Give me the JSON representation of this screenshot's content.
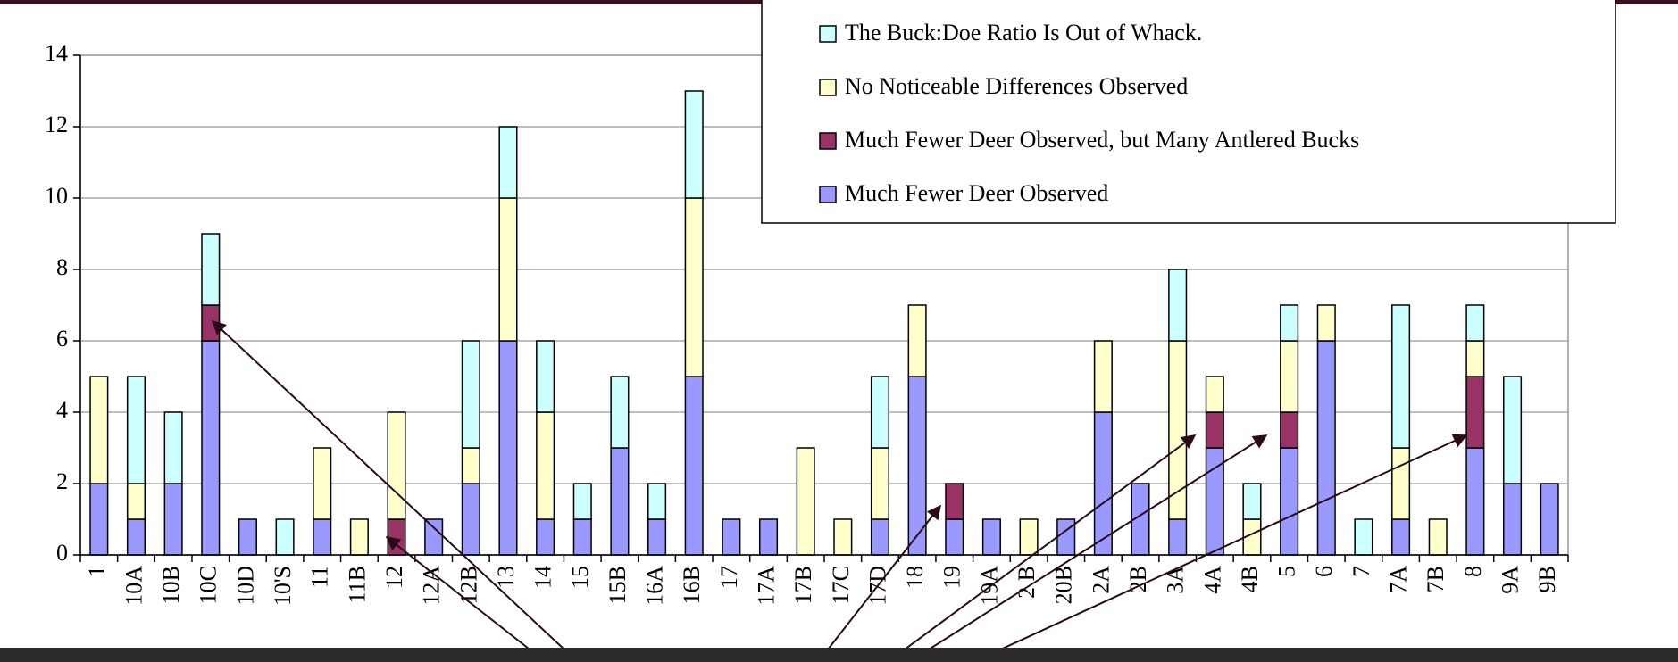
{
  "chart_data": {
    "type": "stacked_bar",
    "categories": [
      "1",
      "10A",
      "10B",
      "10C",
      "10D",
      "10'S",
      "11",
      "11B",
      "12",
      "12A",
      "12B",
      "13",
      "14",
      "15",
      "15B",
      "16A",
      "16B",
      "17",
      "17A",
      "17B",
      "17C",
      "17D",
      "18",
      "19",
      "19A",
      "2 B",
      "20B",
      "2A",
      "2B",
      "3A",
      "4A",
      "4B",
      "5",
      "6",
      "7",
      "7A",
      "7B",
      "8",
      "9A",
      "9B"
    ],
    "series": [
      {
        "name": "Much Fewer Deer Observed",
        "color": "#9999ff",
        "values": [
          2,
          1,
          2,
          6,
          1,
          0,
          1,
          0,
          0,
          1,
          2,
          6,
          1,
          1,
          3,
          1,
          5,
          1,
          1,
          0,
          0,
          1,
          5,
          1,
          1,
          0,
          1,
          4,
          2,
          1,
          3,
          0,
          3,
          6,
          0,
          1,
          0,
          3,
          2,
          2
        ]
      },
      {
        "name": "Much Fewer Deer Observed, but Many Antlered Bucks",
        "color": "#993366",
        "values": [
          0,
          0,
          0,
          1,
          0,
          0,
          0,
          0,
          1,
          0,
          0,
          0,
          0,
          0,
          0,
          0,
          0,
          0,
          0,
          0,
          0,
          0,
          0,
          1,
          0,
          0,
          0,
          0,
          0,
          0,
          1,
          0,
          1,
          0,
          0,
          0,
          0,
          2,
          0,
          0
        ]
      },
      {
        "name": "No Noticeable Differences Observed",
        "color": "#ffffcc",
        "values": [
          3,
          1,
          0,
          0,
          0,
          0,
          2,
          1,
          3,
          0,
          1,
          4,
          3,
          0,
          0,
          0,
          5,
          0,
          0,
          3,
          1,
          2,
          2,
          0,
          0,
          1,
          0,
          2,
          0,
          5,
          1,
          1,
          2,
          1,
          0,
          2,
          1,
          1,
          0,
          0
        ]
      },
      {
        "name": "The Buck:Doe Ratio Is Out of Whack.",
        "color": "#ccffff",
        "values": [
          0,
          3,
          2,
          2,
          0,
          1,
          0,
          0,
          0,
          0,
          3,
          2,
          2,
          1,
          2,
          1,
          3,
          0,
          0,
          0,
          0,
          2,
          0,
          0,
          0,
          0,
          0,
          0,
          0,
          2,
          0,
          1,
          1,
          0,
          1,
          4,
          0,
          1,
          3,
          0
        ]
      }
    ],
    "ylim": [
      0,
      14
    ],
    "yticks": [
      0,
      2,
      4,
      6,
      8,
      10,
      12,
      14
    ],
    "grid": true
  }
}
